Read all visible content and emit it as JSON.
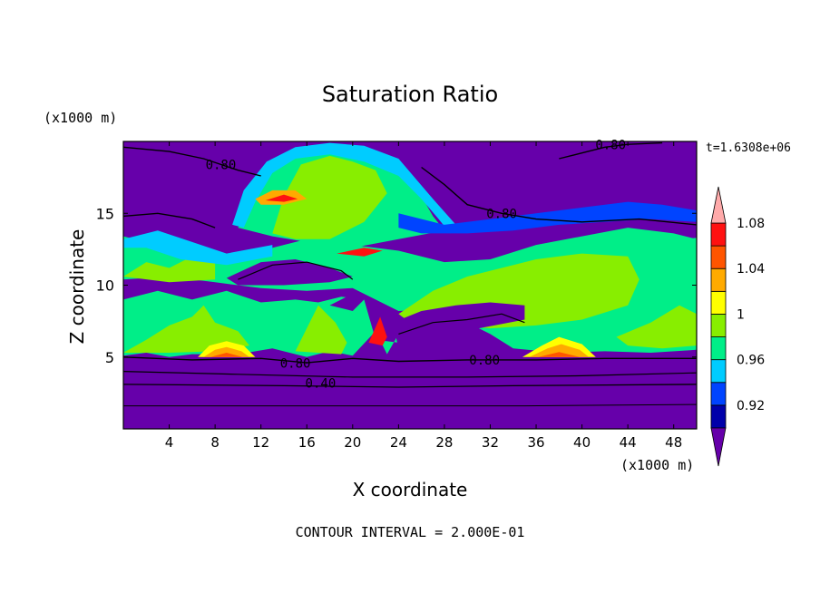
{
  "chart_data": {
    "type": "heatmap",
    "title": "Saturation Ratio",
    "xlabel": "X coordinate",
    "ylabel": "Z coordinate",
    "x_unit": "(x1000 m)",
    "y_unit": "(x1000 m)",
    "xlim": [
      0,
      50
    ],
    "ylim": [
      0,
      20
    ],
    "x_ticks": [
      4,
      8,
      12,
      16,
      20,
      24,
      28,
      32,
      36,
      40,
      44,
      48
    ],
    "y_ticks": [
      5,
      10,
      15
    ],
    "time_label": "t=1.6308e+06",
    "footer": "CONTOUR INTERVAL = 2.000E-01",
    "contour_labels": [
      {
        "text": "0.80",
        "x": 8.5,
        "y": 18.2
      },
      {
        "text": "0.80",
        "x": 42.5,
        "y": 19.6
      },
      {
        "text": "0.80",
        "x": 33.0,
        "y": 14.8
      },
      {
        "text": "0.80",
        "x": 15.0,
        "y": 4.4
      },
      {
        "text": "0.80",
        "x": 31.5,
        "y": 4.6
      },
      {
        "text": "0.40",
        "x": 17.2,
        "y": 3.0
      }
    ],
    "colorbar": {
      "levels": [
        "",
        "0.92",
        "",
        "0.96",
        "",
        "1",
        "",
        "1.04",
        "",
        "1.08",
        ""
      ],
      "colors": [
        "#6600aa",
        "#0000aa",
        "#0044ff",
        "#00ccff",
        "#00ee88",
        "#88ee00",
        "#ffff00",
        "#ffaa00",
        "#ff5500",
        "#ff1111",
        "#ffaaaa"
      ],
      "label_values": [
        "0.92",
        "0.96",
        "1",
        "1.04",
        "1.08"
      ]
    },
    "field_colors": {
      "dry": "#6600aa",
      "near_sat": "#00ee88",
      "moist": "#88ee00",
      "cyan": "#00ccff",
      "blue": "#0044ff",
      "hot": "#ff5500",
      "yellow": "#ffff00",
      "orange": "#ffaa00",
      "red": "#ff1111"
    }
  }
}
